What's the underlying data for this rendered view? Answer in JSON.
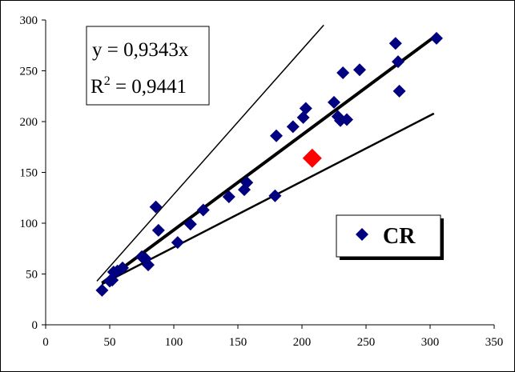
{
  "chart_data": {
    "type": "scatter",
    "xlim": [
      0,
      350
    ],
    "ylim": [
      0,
      300
    ],
    "x_ticks": [
      0,
      50,
      100,
      150,
      200,
      250,
      300,
      350
    ],
    "y_ticks": [
      0,
      50,
      100,
      150,
      200,
      250,
      300
    ],
    "grid": false,
    "legend": {
      "position": "bottom-right",
      "label": "CR"
    },
    "equation": {
      "line1": "y = 0,9343x",
      "r_prefix": "R",
      "r_sup": "2",
      "r_value": " = 0,9441"
    },
    "series": [
      {
        "name": "CR",
        "marker": "diamond",
        "color": "#000080",
        "points": [
          [
            44,
            34
          ],
          [
            50,
            43
          ],
          [
            52,
            44
          ],
          [
            53,
            52
          ],
          [
            56,
            53
          ],
          [
            60,
            56
          ],
          [
            75,
            67
          ],
          [
            78,
            65
          ],
          [
            80,
            59
          ],
          [
            86,
            116
          ],
          [
            88,
            93
          ],
          [
            103,
            81
          ],
          [
            113,
            99
          ],
          [
            123,
            113
          ],
          [
            143,
            126
          ],
          [
            155,
            133
          ],
          [
            157,
            140
          ],
          [
            179,
            127
          ],
          [
            180,
            186
          ],
          [
            193,
            195
          ],
          [
            201,
            204
          ],
          [
            203,
            213
          ],
          [
            225,
            219
          ],
          [
            228,
            205
          ],
          [
            230,
            201
          ],
          [
            232,
            248
          ],
          [
            235,
            202
          ],
          [
            245,
            251
          ],
          [
            273,
            277
          ],
          [
            275,
            259
          ],
          [
            276,
            230
          ],
          [
            305,
            282
          ]
        ]
      }
    ],
    "highlight_point": {
      "x": 208,
      "y": 164,
      "color": "#ff0000"
    },
    "lines": [
      {
        "name": "regression",
        "x": [
          44,
          305
        ],
        "y": [
          41,
          285
        ],
        "color": "#000000",
        "weight": "thick"
      },
      {
        "name": "upper-bound",
        "x": [
          40,
          217
        ],
        "y": [
          43,
          295
        ],
        "color": "#000000",
        "weight": "thin"
      },
      {
        "name": "lower-bound",
        "x": [
          44,
          303
        ],
        "y": [
          40,
          208
        ],
        "color": "#000000",
        "weight": "medium"
      }
    ]
  }
}
